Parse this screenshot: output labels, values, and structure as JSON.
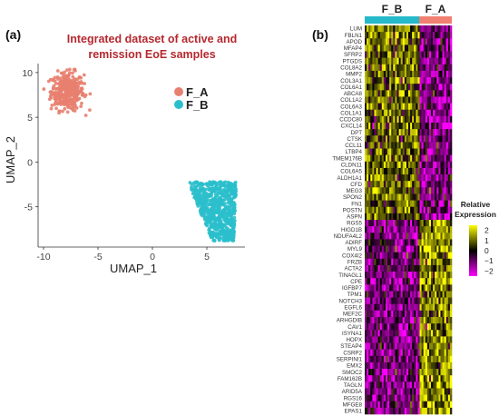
{
  "panels": {
    "a_label": "(a)",
    "b_label": "(b)"
  },
  "chart_data": [
    {
      "type": "scatter",
      "title": "Integrated dataset of active and remission EoE samples",
      "xlabel": "UMAP_1",
      "ylabel": "UMAP_2",
      "xlim": [
        -10.5,
        8.5
      ],
      "ylim": [
        -9.5,
        11
      ],
      "xticks": [
        -10,
        -5,
        0,
        5
      ],
      "yticks": [
        -5,
        0,
        5,
        10
      ],
      "legend_position": "top-right",
      "series": [
        {
          "name": "F_A",
          "color": "#e8806f",
          "center": [
            -7.8,
            7.9
          ],
          "spread": [
            1.4,
            1.6
          ]
        },
        {
          "name": "F_B",
          "color": "#2bbfcc",
          "center": [
            5.8,
            -5.6
          ],
          "spread": [
            1.9,
            1.9
          ]
        }
      ]
    },
    {
      "type": "heatmap",
      "groups": [
        {
          "name": "F_B",
          "color": "#25b9c9"
        },
        {
          "name": "F_A",
          "color": "#f08070"
        }
      ],
      "genes": [
        "LUM",
        "FBLN1",
        "APOD",
        "MFAP4",
        "SFRP2",
        "PTGDS",
        "COL8A2",
        "MMP2",
        "COL3A1",
        "COL6A1",
        "ABCA8",
        "COL1A2",
        "COL6A3",
        "COL1A1",
        "CCDC80",
        "CXCL14",
        "DPT",
        "CTSK",
        "CCL11",
        "LTBP4",
        "TMEM176B",
        "CLDN11",
        "COL6A5",
        "ALDH1A1",
        "CFD",
        "MEG3",
        "SPON2",
        "FN1",
        "POSTN",
        "ASPN",
        "RGS5",
        "HIGD1B",
        "NDUFA4L2",
        "ADIRF",
        "MYL9",
        "COX4I2",
        "FRZB",
        "ACTA2",
        "TINAGL1",
        "CPE",
        "IGFBP7",
        "TPM1",
        "NOTCH3",
        "EGFL6",
        "MEF2C",
        "ARHGDIB",
        "CAV1",
        "ISYNA1",
        "HOPX",
        "STEAP4",
        "CSRP2",
        "SERPINI1",
        "EMX2",
        "SMOC2",
        "FAM162B",
        "TAGLN",
        "ARID5A",
        "RGS16",
        "MFGE8",
        "EPAS1"
      ],
      "upregulated_in_F_B_count": 30,
      "colorbar": {
        "title_line1": "Relative",
        "title_line2": "Expression",
        "range": [
          -2.5,
          2.5
        ],
        "ticks": [
          "2",
          "1",
          "0",
          "−1",
          "−2"
        ],
        "colors": [
          "#ff00ff",
          "#000000",
          "#ffff00"
        ]
      }
    }
  ]
}
